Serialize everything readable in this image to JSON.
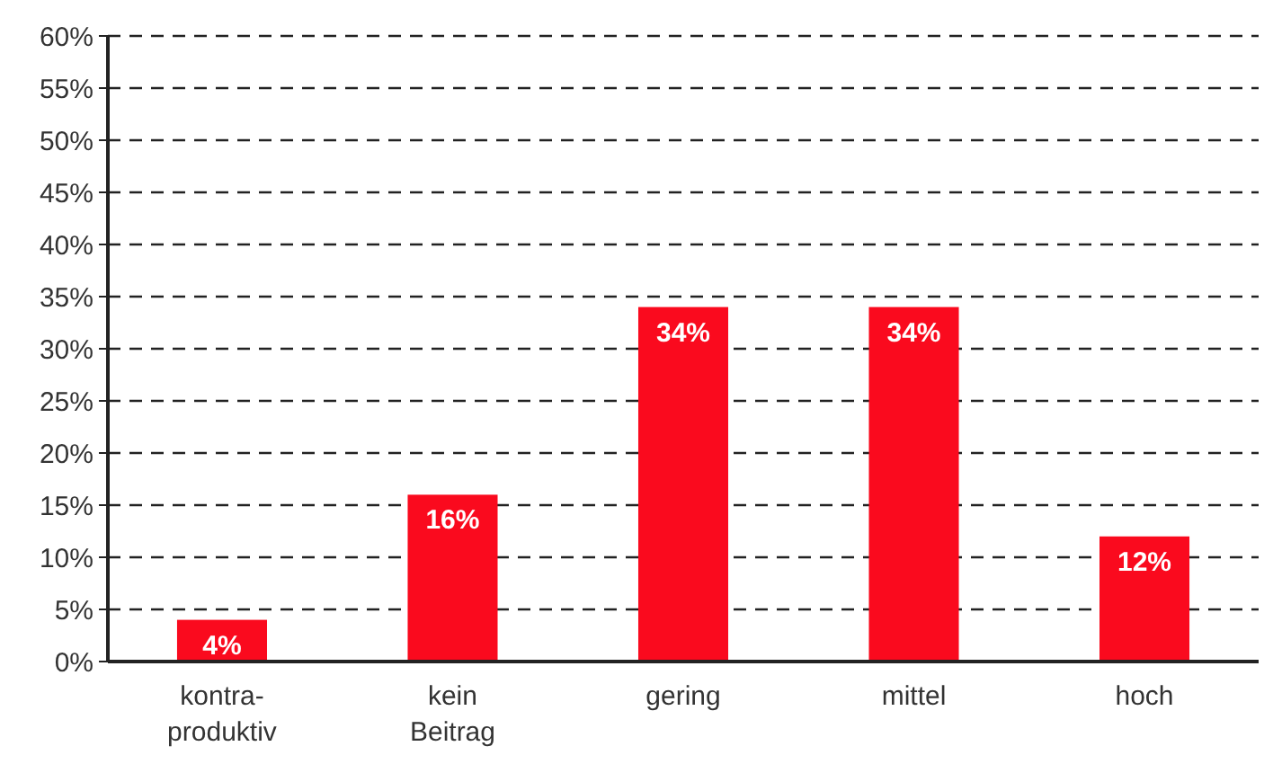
{
  "chart_data": {
    "type": "bar",
    "categories": [
      "kontra-\nproduktiv",
      "kein\nBeitrag",
      "gering",
      "mittel",
      "hoch"
    ],
    "values": [
      4,
      16,
      34,
      34,
      12
    ],
    "color": "#fa0a1e",
    "value_labels": [
      "4%",
      "16%",
      "34%",
      "34%",
      "12%"
    ],
    "grid": "y",
    "ylim": [
      0,
      60
    ],
    "yticks": [
      {
        "value": 0,
        "label": "0%"
      },
      {
        "value": 5,
        "label": "5%"
      },
      {
        "value": 10,
        "label": "10%"
      },
      {
        "value": 15,
        "label": "15%"
      },
      {
        "value": 20,
        "label": "20%"
      },
      {
        "value": 25,
        "label": "25%"
      },
      {
        "value": 30,
        "label": "30%"
      },
      {
        "value": 35,
        "label": "35%"
      },
      {
        "value": 40,
        "label": "40%"
      },
      {
        "value": 45,
        "label": "45%"
      },
      {
        "value": 50,
        "label": "50%"
      },
      {
        "value": 55,
        "label": "55%"
      },
      {
        "value": 60,
        "label": "60%"
      }
    ]
  }
}
